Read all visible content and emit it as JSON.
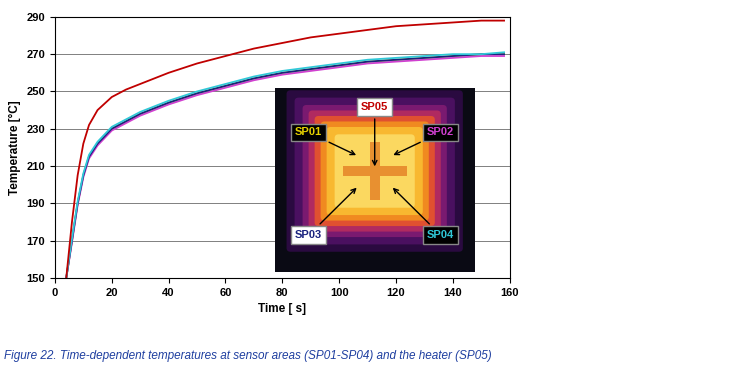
{
  "chart_data": {
    "type": "line",
    "title": "Figure 22. Time-dependent temperatures at sensor areas (SP01-SP04) and the heater (SP05)",
    "x_label": "Time [ s]",
    "y_label": "Temperature [°C]",
    "x": [
      4,
      6,
      8,
      10,
      12,
      15,
      20,
      25,
      30,
      40,
      50,
      60,
      70,
      80,
      90,
      100,
      110,
      120,
      130,
      140,
      150,
      158
    ],
    "series": [
      {
        "name": "SP01",
        "color": "#e6d200",
        "values": [
          150,
          170,
          190,
          205,
          215,
          222,
          230,
          234,
          238,
          244,
          249,
          253,
          257,
          260,
          262,
          264,
          266,
          267,
          268,
          269,
          270,
          270
        ]
      },
      {
        "name": "SP02",
        "color": "#d040d0",
        "values": [
          150,
          169,
          189,
          204,
          214,
          221,
          229,
          233,
          237,
          243,
          248,
          252,
          256,
          259,
          261,
          263,
          265,
          266,
          267,
          268,
          269,
          269
        ]
      },
      {
        "name": "SP03",
        "color": "#1a237e",
        "values": [
          150,
          170,
          190,
          205,
          215,
          222,
          230,
          234,
          238,
          244,
          249,
          253,
          257,
          260,
          262,
          264,
          266,
          267,
          268,
          269,
          270,
          270
        ]
      },
      {
        "name": "SP04",
        "color": "#30c8d8",
        "values": [
          150,
          171,
          191,
          206,
          216,
          223,
          231,
          235,
          239,
          245,
          250,
          254,
          258,
          261,
          263,
          265,
          267,
          268,
          269,
          270,
          270,
          271
        ]
      },
      {
        "name": "SP05",
        "color": "#c00000",
        "values": [
          150,
          180,
          205,
          222,
          232,
          240,
          247,
          251,
          254,
          260,
          265,
          269,
          273,
          276,
          279,
          281,
          283,
          285,
          286,
          287,
          288,
          288
        ]
      }
    ],
    "xlim": [
      0,
      160
    ],
    "xticks": [
      0,
      20,
      40,
      60,
      80,
      100,
      120,
      140,
      160
    ],
    "ylim": [
      150,
      290
    ],
    "yticks": [
      150,
      170,
      190,
      210,
      230,
      250,
      270,
      290
    ],
    "grid": true
  }
}
